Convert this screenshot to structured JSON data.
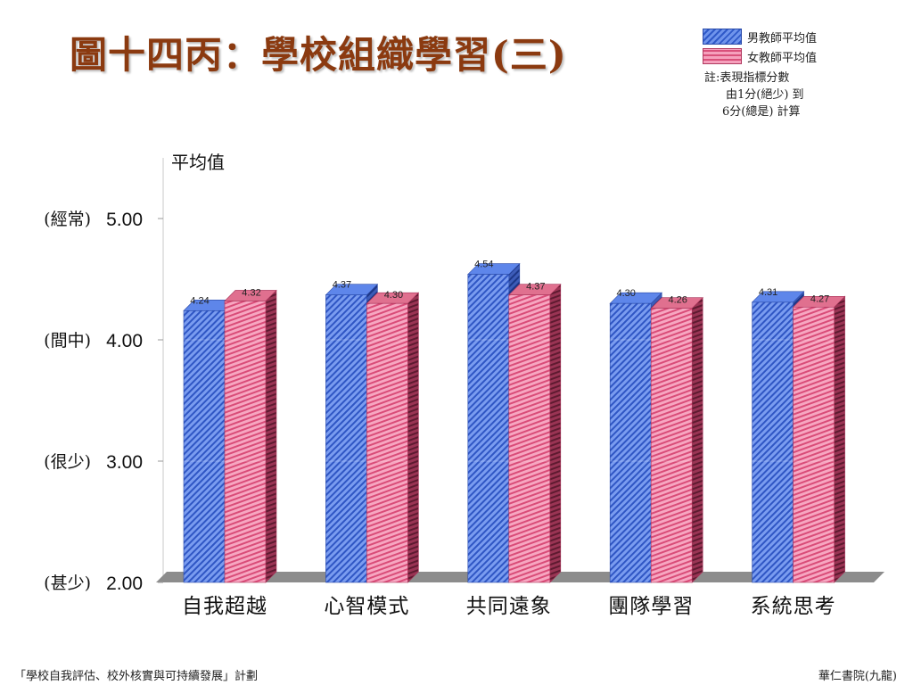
{
  "title": "圖十四丙：學校組織學習(三)",
  "legend": {
    "male": "男教師平均值",
    "female": "女教師平均值"
  },
  "note": {
    "line1": "註:表現指標分數",
    "line2": "由1分(絕少) 到",
    "line3": "6分(總是) 計算"
  },
  "footer": {
    "left": "「學校自我評估、校外核實與可持續發展」計劃",
    "right": "華仁書院(九龍)"
  },
  "colors": {
    "male": "#4f78e0",
    "female": "#ef7fa3",
    "title": "#8b3a10"
  },
  "chart_data": {
    "type": "bar",
    "ylabel": "平均值",
    "ylim": [
      2.0,
      5.5
    ],
    "y_ticks": [
      {
        "value": 2.0,
        "label": "(甚少)",
        "num": "2.00"
      },
      {
        "value": 3.0,
        "label": "(很少)",
        "num": "3.00"
      },
      {
        "value": 4.0,
        "label": "(間中)",
        "num": "4.00"
      },
      {
        "value": 5.0,
        "label": "(經常)",
        "num": "5.00"
      }
    ],
    "categories": [
      "自我超越",
      "心智模式",
      "共同遠象",
      "團隊學習",
      "系統思考"
    ],
    "series": [
      {
        "name": "男教師平均值",
        "values": [
          4.24,
          4.37,
          4.54,
          4.3,
          4.31
        ]
      },
      {
        "name": "女教師平均值",
        "values": [
          4.32,
          4.3,
          4.37,
          4.26,
          4.27
        ]
      }
    ]
  }
}
